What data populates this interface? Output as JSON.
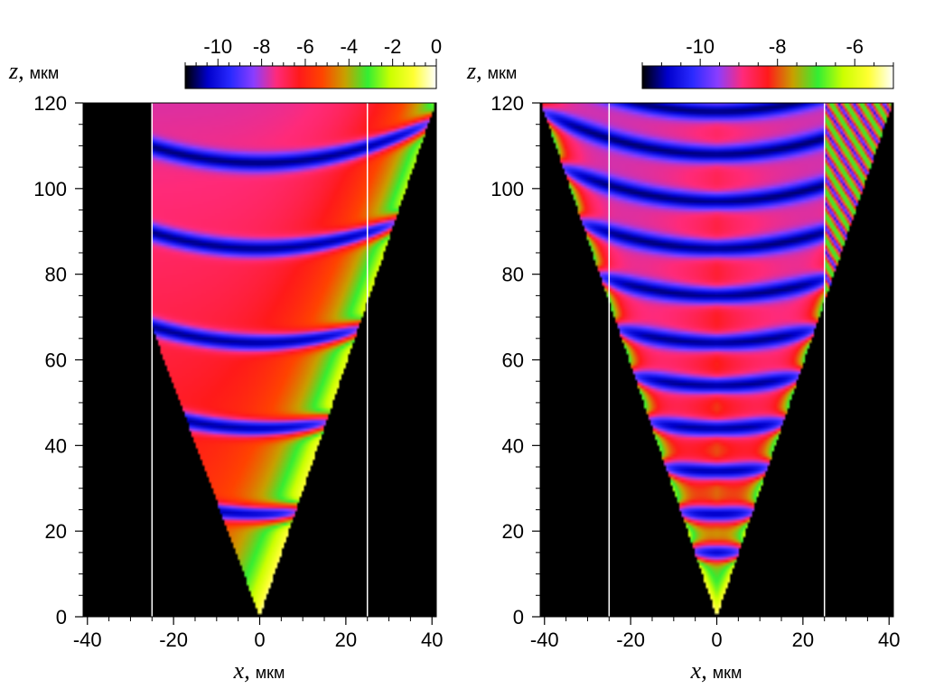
{
  "chart_data": [
    {
      "type": "heatmap",
      "panel": "left",
      "xlabel": {
        "var": "x,",
        "unit": "мкм"
      },
      "ylabel": {
        "var": "z,",
        "unit": "мкм"
      },
      "xlim": [
        -41,
        41
      ],
      "ylim": [
        0,
        120
      ],
      "xticks": [
        -40,
        -20,
        0,
        20,
        40
      ],
      "xtick_labels": [
        "-40",
        "-20",
        "0",
        "20",
        "40"
      ],
      "yticks": [
        0,
        20,
        40,
        60,
        80,
        100,
        120
      ],
      "ytick_labels": [
        "0",
        "20",
        "40",
        "60",
        "80",
        "100",
        "120"
      ],
      "guide_lines_x": [
        -25,
        25
      ],
      "colorbar": {
        "range": [
          -11.5,
          0
        ],
        "ticks": [
          -10,
          -8,
          -6,
          -4,
          -2,
          0
        ],
        "tick_labels": [
          "-10",
          "-8",
          "-6",
          "-4",
          "-2",
          "0"
        ],
        "colors": [
          "#000000",
          "#0000cc",
          "#2a2aff",
          "#8a3dff",
          "#ff2a7a",
          "#ff1a1a",
          "#ff4400",
          "#c8a000",
          "#33ee33",
          "#ccff00",
          "#ffff33",
          "#ffffff"
        ]
      },
      "beam": {
        "apex": [
          0,
          0
        ],
        "right_edge_slope": 0.34,
        "left_edge_slope": -0.37,
        "left_edge_limit_x": -25,
        "fringe_z": [
          24,
          44,
          64,
          86,
          106
        ],
        "fringe_curvature": 0.006,
        "bright_edge": "right"
      }
    },
    {
      "type": "heatmap",
      "panel": "right",
      "xlabel": {
        "var": "x,",
        "unit": "мкм"
      },
      "ylabel": {
        "var": "z,",
        "unit": "мкм"
      },
      "xlim": [
        -41,
        41
      ],
      "ylim": [
        0,
        120
      ],
      "xticks": [
        -40,
        -20,
        0,
        20,
        40
      ],
      "xtick_labels": [
        "-40",
        "-20",
        "0",
        "20",
        "40"
      ],
      "yticks": [
        0,
        20,
        40,
        60,
        80,
        100,
        120
      ],
      "ytick_labels": [
        "0",
        "20",
        "40",
        "60",
        "80",
        "100",
        "120"
      ],
      "guide_lines_x": [
        -25,
        25
      ],
      "colorbar": {
        "range": [
          -11.5,
          -5
        ],
        "ticks": [
          -10,
          -8,
          -6
        ],
        "tick_labels": [
          "-10",
          "-8",
          "-6"
        ],
        "colors": [
          "#000000",
          "#0000cc",
          "#2a2aff",
          "#8a3dff",
          "#ff2a7a",
          "#ff1a1a",
          "#c8a000",
          "#33ee33",
          "#ccff00",
          "#ffff33",
          "#ffffff"
        ]
      },
      "beam": {
        "apex": [
          0,
          0
        ],
        "right_edge_slope": 0.34,
        "left_edge_slope": -0.34,
        "right_edge_limit_x": 25,
        "fringe_z": [
          15,
          24,
          34,
          44,
          54,
          64,
          75,
          86,
          97,
          108,
          118
        ],
        "fringe_curvature": 0.006,
        "bright_edge": "both"
      }
    }
  ]
}
